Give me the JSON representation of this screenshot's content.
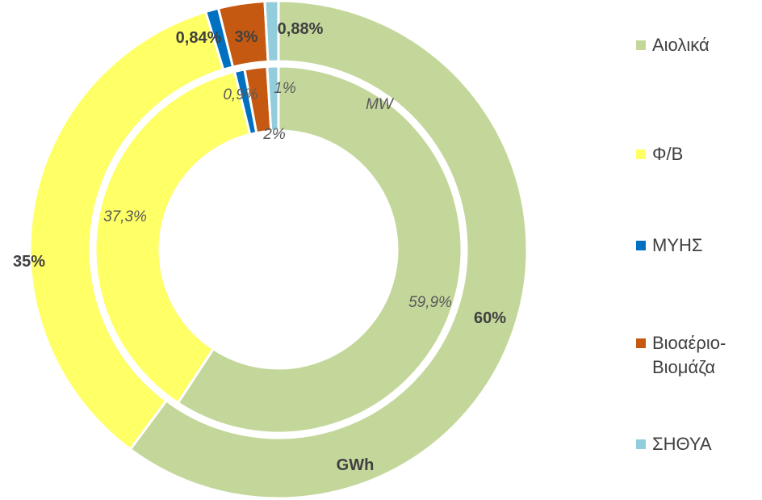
{
  "chart_data": {
    "type": "donut",
    "categories": [
      "Αιολικά",
      "Φ/Β",
      "ΜΥΗΣ",
      "Βιοαέριο-\nΒιομάζα",
      "ΣΗΘΥΑ"
    ],
    "colors": [
      "#c4d79b",
      "#ffff66",
      "#0070c0",
      "#c65911",
      "#92cddc"
    ],
    "series": [
      {
        "name": "GWh",
        "ring": "outer",
        "values": [
          60,
          35,
          0.84,
          3,
          0.88
        ],
        "labels": [
          "60%",
          "35%",
          "0,84%",
          "3%",
          "0,88%"
        ]
      },
      {
        "name": "MW",
        "ring": "inner",
        "values": [
          59.9,
          37.3,
          0.9,
          2,
          1
        ],
        "labels": [
          "59,9%",
          "37,3%",
          "0,9%",
          "2%",
          "1%"
        ]
      }
    ],
    "legend_position": "right"
  }
}
